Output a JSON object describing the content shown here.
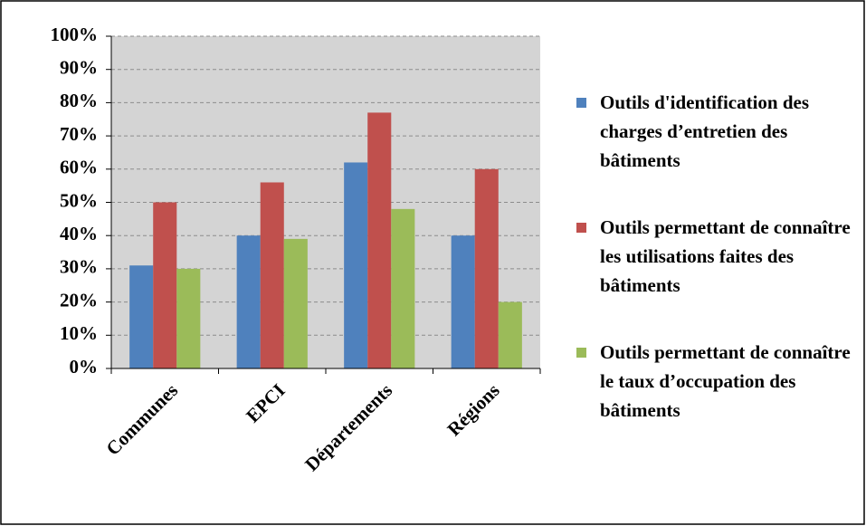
{
  "chart_data": {
    "type": "bar",
    "categories": [
      "Communes",
      "EPCI",
      "Départements",
      "Régions"
    ],
    "series": [
      {
        "name": "Outils d'identification des charges d’entretien des bâtiments",
        "color": "#4f81bd",
        "values": [
          31,
          40,
          62,
          40
        ]
      },
      {
        "name": "Outils permettant de connaître les utilisations faites des bâtiments",
        "color": "#c0504d",
        "values": [
          50,
          56,
          77,
          60
        ]
      },
      {
        "name": "Outils permettant de connaître le taux d’occupation des bâtiments",
        "color": "#9bbb59",
        "values": [
          30,
          39,
          48,
          20
        ]
      }
    ],
    "ylim": [
      0,
      100
    ],
    "yticks": [
      {
        "value": 0,
        "label": "0%"
      },
      {
        "value": 10,
        "label": "10%"
      },
      {
        "value": 20,
        "label": "20%"
      },
      {
        "value": 30,
        "label": "30%"
      },
      {
        "value": 40,
        "label": "40%"
      },
      {
        "value": 50,
        "label": "50%"
      },
      {
        "value": 60,
        "label": "60%"
      },
      {
        "value": 70,
        "label": "70%"
      },
      {
        "value": 80,
        "label": "80%"
      },
      {
        "value": 90,
        "label": "90%"
      },
      {
        "value": 100,
        "label": "100%"
      }
    ],
    "grid": true,
    "legend": "right"
  }
}
